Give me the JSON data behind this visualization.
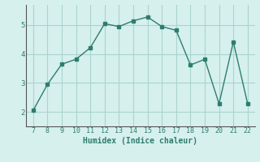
{
  "x": [
    7,
    8,
    9,
    10,
    11,
    12,
    13,
    14,
    15,
    16,
    17,
    18,
    19,
    20,
    21,
    22
  ],
  "y": [
    2.05,
    2.95,
    3.65,
    3.82,
    4.22,
    5.05,
    4.95,
    5.15,
    5.28,
    4.95,
    4.82,
    3.62,
    3.82,
    2.28,
    4.42,
    2.28
  ],
  "xlabel": "Humidex (Indice chaleur)",
  "xlim": [
    6.5,
    22.5
  ],
  "ylim": [
    1.5,
    5.7
  ],
  "xticks": [
    7,
    8,
    9,
    10,
    11,
    12,
    13,
    14,
    15,
    16,
    17,
    18,
    19,
    20,
    21,
    22
  ],
  "yticks": [
    2,
    3,
    4,
    5
  ],
  "line_color": "#2e7d6e",
  "marker_color": "#2e7d6e",
  "bg_color": "#d6f0ee",
  "grid_color": "#aad4ce"
}
